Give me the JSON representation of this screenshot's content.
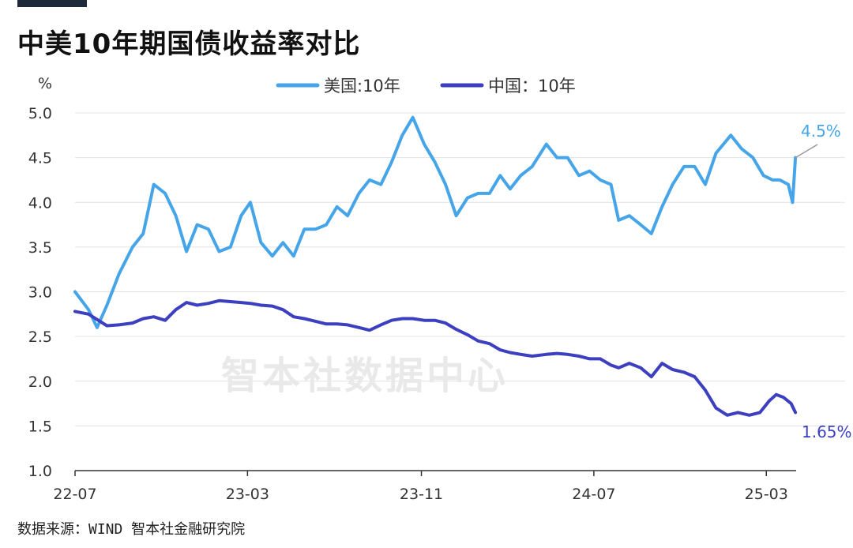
{
  "header": {
    "title": "中美10年期国债收益率对比"
  },
  "footer": {
    "source": "数据来源：WIND 智本社金融研究院"
  },
  "watermark": "智本社数据中心",
  "chart_data": {
    "type": "line",
    "ylabel": "%",
    "ylim": [
      1.0,
      5.0
    ],
    "yticks": [
      "1.0",
      "1.5",
      "2.0",
      "2.5",
      "3.0",
      "3.5",
      "4.0",
      "4.5",
      "5.0"
    ],
    "xlim": [
      "2022-07",
      "2025-03"
    ],
    "xticks": [
      "22-07",
      "23-03",
      "23-11",
      "24-07",
      "25-03"
    ],
    "grid": true,
    "legend": "top-center",
    "series": [
      {
        "name": "美国:10年",
        "color": "#45a5e8",
        "end_label": "4.5%",
        "points": [
          [
            "2022-07-01",
            3.0
          ],
          [
            "2022-07-20",
            2.8
          ],
          [
            "2022-08-01",
            2.6
          ],
          [
            "2022-08-15",
            2.85
          ],
          [
            "2022-09-01",
            3.2
          ],
          [
            "2022-09-20",
            3.5
          ],
          [
            "2022-10-05",
            3.65
          ],
          [
            "2022-10-20",
            4.2
          ],
          [
            "2022-11-05",
            4.1
          ],
          [
            "2022-11-20",
            3.85
          ],
          [
            "2022-12-05",
            3.45
          ],
          [
            "2022-12-20",
            3.75
          ],
          [
            "2023-01-05",
            3.7
          ],
          [
            "2023-01-20",
            3.45
          ],
          [
            "2023-02-05",
            3.5
          ],
          [
            "2023-02-20",
            3.85
          ],
          [
            "2023-03-05",
            4.0
          ],
          [
            "2023-03-20",
            3.55
          ],
          [
            "2023-04-05",
            3.4
          ],
          [
            "2023-04-20",
            3.55
          ],
          [
            "2023-05-05",
            3.4
          ],
          [
            "2023-05-20",
            3.7
          ],
          [
            "2023-06-05",
            3.7
          ],
          [
            "2023-06-20",
            3.75
          ],
          [
            "2023-07-05",
            3.95
          ],
          [
            "2023-07-20",
            3.85
          ],
          [
            "2023-08-05",
            4.1
          ],
          [
            "2023-08-20",
            4.25
          ],
          [
            "2023-09-05",
            4.2
          ],
          [
            "2023-09-20",
            4.45
          ],
          [
            "2023-10-05",
            4.75
          ],
          [
            "2023-10-20",
            4.95
          ],
          [
            "2023-11-05",
            4.65
          ],
          [
            "2023-11-20",
            4.45
          ],
          [
            "2023-12-05",
            4.2
          ],
          [
            "2023-12-20",
            3.85
          ],
          [
            "2024-01-05",
            4.05
          ],
          [
            "2024-01-20",
            4.1
          ],
          [
            "2024-02-05",
            4.1
          ],
          [
            "2024-02-20",
            4.3
          ],
          [
            "2024-03-05",
            4.15
          ],
          [
            "2024-03-20",
            4.3
          ],
          [
            "2024-04-05",
            4.4
          ],
          [
            "2024-04-25",
            4.65
          ],
          [
            "2024-05-10",
            4.5
          ],
          [
            "2024-05-25",
            4.5
          ],
          [
            "2024-06-10",
            4.3
          ],
          [
            "2024-06-25",
            4.35
          ],
          [
            "2024-07-10",
            4.25
          ],
          [
            "2024-07-25",
            4.2
          ],
          [
            "2024-08-05",
            3.8
          ],
          [
            "2024-08-20",
            3.85
          ],
          [
            "2024-09-05",
            3.75
          ],
          [
            "2024-09-20",
            3.65
          ],
          [
            "2024-10-05",
            3.95
          ],
          [
            "2024-10-20",
            4.2
          ],
          [
            "2024-11-05",
            4.4
          ],
          [
            "2024-11-20",
            4.4
          ],
          [
            "2024-12-05",
            4.2
          ],
          [
            "2024-12-20",
            4.55
          ],
          [
            "2025-01-10",
            4.75
          ],
          [
            "2025-01-25",
            4.6
          ],
          [
            "2025-02-10",
            4.5
          ],
          [
            "2025-02-25",
            4.3
          ],
          [
            "2025-03-10",
            4.25
          ],
          [
            "2025-03-20",
            4.25
          ],
          [
            "2025-04-01",
            4.2
          ],
          [
            "2025-04-07",
            4.0
          ],
          [
            "2025-04-11",
            4.5
          ]
        ]
      },
      {
        "name": "中国：10年",
        "color": "#3b3fc0",
        "end_label": "1.65%",
        "points": [
          [
            "2022-07-01",
            2.78
          ],
          [
            "2022-07-20",
            2.75
          ],
          [
            "2022-08-15",
            2.62
          ],
          [
            "2022-09-01",
            2.63
          ],
          [
            "2022-09-20",
            2.65
          ],
          [
            "2022-10-05",
            2.7
          ],
          [
            "2022-10-20",
            2.72
          ],
          [
            "2022-11-05",
            2.68
          ],
          [
            "2022-11-20",
            2.8
          ],
          [
            "2022-12-05",
            2.88
          ],
          [
            "2022-12-20",
            2.85
          ],
          [
            "2023-01-05",
            2.87
          ],
          [
            "2023-01-20",
            2.9
          ],
          [
            "2023-02-05",
            2.89
          ],
          [
            "2023-02-20",
            2.88
          ],
          [
            "2023-03-05",
            2.87
          ],
          [
            "2023-03-20",
            2.85
          ],
          [
            "2023-04-05",
            2.84
          ],
          [
            "2023-04-20",
            2.8
          ],
          [
            "2023-05-05",
            2.72
          ],
          [
            "2023-05-20",
            2.7
          ],
          [
            "2023-06-05",
            2.67
          ],
          [
            "2023-06-20",
            2.64
          ],
          [
            "2023-07-05",
            2.64
          ],
          [
            "2023-07-20",
            2.63
          ],
          [
            "2023-08-05",
            2.6
          ],
          [
            "2023-08-20",
            2.57
          ],
          [
            "2023-09-05",
            2.63
          ],
          [
            "2023-09-20",
            2.68
          ],
          [
            "2023-10-05",
            2.7
          ],
          [
            "2023-10-20",
            2.7
          ],
          [
            "2023-11-05",
            2.68
          ],
          [
            "2023-11-20",
            2.68
          ],
          [
            "2023-12-05",
            2.65
          ],
          [
            "2023-12-20",
            2.58
          ],
          [
            "2024-01-05",
            2.52
          ],
          [
            "2024-01-20",
            2.45
          ],
          [
            "2024-02-05",
            2.42
          ],
          [
            "2024-02-20",
            2.35
          ],
          [
            "2024-03-05",
            2.32
          ],
          [
            "2024-03-20",
            2.3
          ],
          [
            "2024-04-05",
            2.28
          ],
          [
            "2024-04-25",
            2.3
          ],
          [
            "2024-05-10",
            2.31
          ],
          [
            "2024-05-25",
            2.3
          ],
          [
            "2024-06-10",
            2.28
          ],
          [
            "2024-06-25",
            2.25
          ],
          [
            "2024-07-10",
            2.25
          ],
          [
            "2024-07-25",
            2.18
          ],
          [
            "2024-08-05",
            2.15
          ],
          [
            "2024-08-20",
            2.2
          ],
          [
            "2024-09-05",
            2.15
          ],
          [
            "2024-09-20",
            2.05
          ],
          [
            "2024-10-05",
            2.2
          ],
          [
            "2024-10-20",
            2.13
          ],
          [
            "2024-11-05",
            2.1
          ],
          [
            "2024-11-20",
            2.05
          ],
          [
            "2024-12-05",
            1.9
          ],
          [
            "2024-12-20",
            1.7
          ],
          [
            "2025-01-05",
            1.62
          ],
          [
            "2025-01-20",
            1.65
          ],
          [
            "2025-02-05",
            1.62
          ],
          [
            "2025-02-20",
            1.65
          ],
          [
            "2025-03-05",
            1.78
          ],
          [
            "2025-03-15",
            1.85
          ],
          [
            "2025-03-25",
            1.82
          ],
          [
            "2025-04-05",
            1.75
          ],
          [
            "2025-04-11",
            1.65
          ]
        ]
      }
    ]
  }
}
